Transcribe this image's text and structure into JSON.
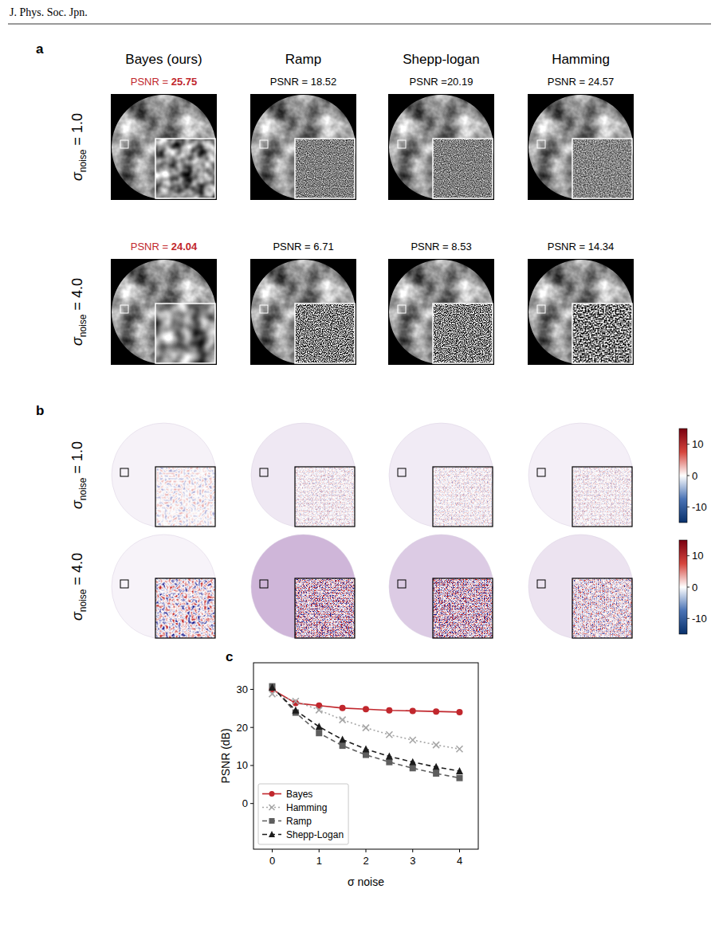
{
  "header": {
    "journal": "J. Phys. Soc. Jpn."
  },
  "panel_a": {
    "label": "a",
    "columns": [
      "Bayes (ours)",
      "Ramp",
      "Shepp-logan",
      "Hamming"
    ],
    "rows": [
      {
        "symbol": "σ",
        "subscript": "noise",
        "suffix": " = 1.0",
        "psnr": [
          "PSNR = 25.75",
          "PSNR = 18.52",
          "PSNR =20.19",
          "PSNR = 24.57"
        ],
        "best": 0
      },
      {
        "symbol": "σ",
        "subscript": "noise",
        "suffix": " = 4.0",
        "psnr": [
          "PSNR = 24.04",
          "PSNR = 6.71",
          "PSNR = 8.53",
          "PSNR = 14.34"
        ],
        "best": 0
      }
    ]
  },
  "panel_b": {
    "label": "b",
    "rows": [
      {
        "symbol": "σ",
        "subscript": "noise",
        "suffix": " = 1.0"
      },
      {
        "symbol": "σ",
        "subscript": "noise",
        "suffix": " = 4.0"
      }
    ],
    "colorbar": {
      "range": [
        -15,
        15
      ],
      "ticks": [
        -10,
        0,
        10
      ]
    }
  },
  "chart_data": {
    "type": "line",
    "panel_label": "c",
    "x_label": "σ noise",
    "y_label": "PSNR (dB)",
    "x": [
      0,
      0.5,
      1,
      1.5,
      2,
      2.5,
      3,
      3.5,
      4
    ],
    "series": [
      {
        "name": "Bayes",
        "color": "#c1272d",
        "marker": "circle",
        "line_style": "solid",
        "values": [
          30.0,
          26.4,
          25.75,
          25.1,
          24.8,
          24.5,
          24.35,
          24.2,
          24.04
        ]
      },
      {
        "name": "Hamming",
        "color": "#a6a6a6",
        "marker": "x",
        "line_style": "dotted",
        "values": [
          28.8,
          26.9,
          24.57,
          22.0,
          19.9,
          18.1,
          16.7,
          15.4,
          14.34
        ]
      },
      {
        "name": "Ramp",
        "color": "#5e5e5e",
        "marker": "square",
        "line_style": "dashed",
        "values": [
          30.8,
          23.9,
          18.52,
          15.2,
          12.8,
          10.9,
          9.3,
          7.9,
          6.71
        ]
      },
      {
        "name": "Shepp-Logan",
        "color": "#1c1c1c",
        "marker": "triangle",
        "line_style": "dashed",
        "values": [
          30.5,
          24.5,
          20.19,
          16.8,
          14.3,
          12.4,
          10.9,
          9.6,
          8.53
        ]
      }
    ],
    "xlim": [
      -0.4,
      4.4
    ],
    "ylim": [
      -12,
      37
    ],
    "xticks": [
      0,
      1,
      2,
      3,
      4
    ],
    "yticks": [
      0,
      10,
      20,
      30
    ],
    "legend": "lower left"
  }
}
